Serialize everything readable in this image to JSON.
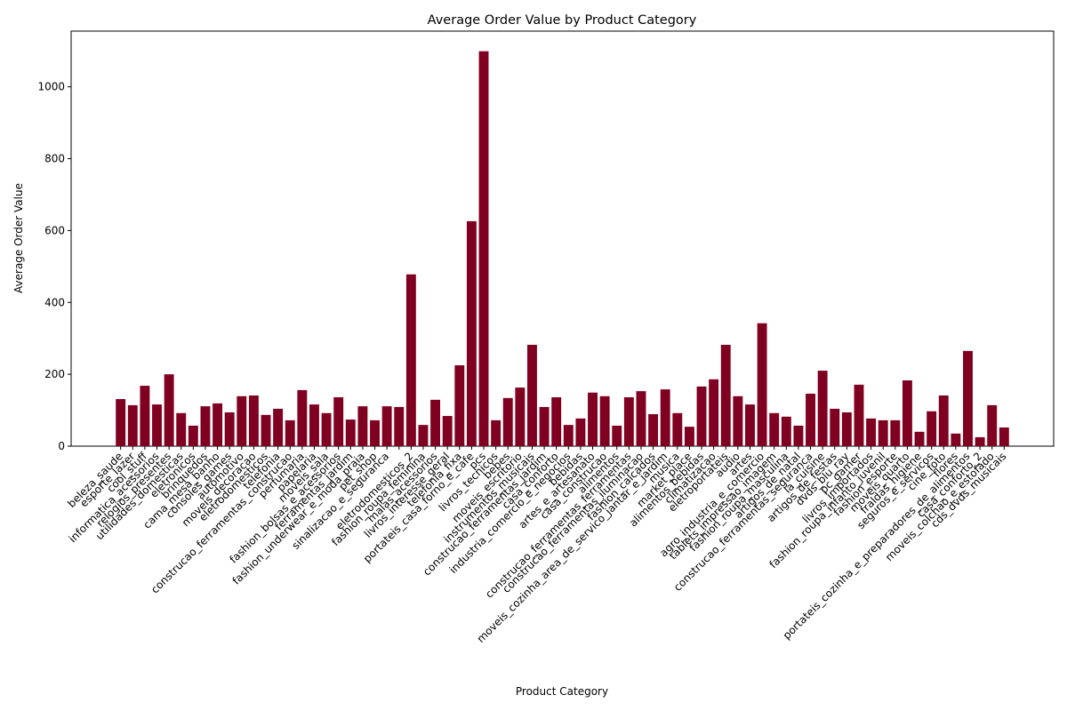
{
  "chart_data": {
    "type": "bar",
    "title": "Average Order Value by Product Category",
    "xlabel": "Product Category",
    "ylabel": "Average Order Value",
    "color": "#7f0020",
    "categories": [
      "beleza_saude",
      "esporte_lazer",
      "cool_stuff",
      "informatica_acessorios",
      "relogios_presentes",
      "utilidades_domesticas",
      "eletronicos",
      "brinquedos",
      "cama_mesa_banho",
      "consoles_games",
      "automotivo",
      "moveis_decoracao",
      "eletrodomesticos",
      "telefonia",
      "construcao_ferramentas_construcao",
      "perfumaria",
      "papelaria",
      "moveis_sala",
      "fashion_bolsas_e_acessorios",
      "ferramentas_jardim",
      "fashion_underwear_e_moda_praia",
      "pet_shop",
      "sinalizacao_e_seguranca",
      null,
      "eletrodomesticos_2",
      "fashion_roupa_feminina",
      "malas_acessorios",
      "livros_interesse_geral",
      "telefonia_fixa",
      "portateis_casa_forno_e_cafe",
      "pcs",
      "livros_tecnicos",
      "bebes",
      "moveis_escritorio",
      "instrumentos_musicais",
      "construcao_ferramentas_jardim",
      "casa_conforto",
      "industria_comercio_e_negocios",
      "bebidas",
      "artes_e_artesanato",
      "casa_construcao",
      "alimentos",
      "construcao_ferramentas_ferramentas",
      "construcao_ferramentas_iluminacao",
      "fashion_calcados",
      "moveis_cozinha_area_de_servico_jantar_e_jardim",
      "musica",
      "market_place",
      "alimentos_bebidas",
      "climatizacao",
      "eletroportateis",
      "audio",
      "artes",
      "agro_industria_e_comercio",
      "tablets_impressao_imagem",
      "fashion_roupa_masculina",
      "artigos_de_natal",
      "construcao_ferramentas_seguranca",
      "la_cuisine",
      "artigos_de_festas",
      "dvds_blu_ray",
      "pc_gamer",
      "livros_importados",
      "fashion_roupa_infanto_juvenil",
      "fashion_esporte",
      "moveis_quarto",
      "fraldas_higiene",
      "seguros_e_servicos",
      "cine_foto",
      "flores",
      "portateis_cozinha_e_preparadores_de_alimentos",
      "casa_conforto_2",
      "moveis_colchao_e_estofado",
      "cds_dvds_musicais"
    ],
    "values": [
      131,
      114,
      168,
      116,
      200,
      92,
      57,
      111,
      119,
      94,
      139,
      141,
      87,
      104,
      72,
      156,
      116,
      92,
      136,
      74,
      111,
      72,
      111,
      109,
      478,
      59,
      129,
      84,
      225,
      626,
      1099,
      72,
      134,
      163,
      282,
      109,
      136,
      59,
      77,
      149,
      139,
      57,
      136,
      153,
      89,
      158,
      92,
      54,
      166,
      186,
      282,
      139,
      116,
      342,
      92,
      82,
      57,
      146,
      210,
      104,
      94,
      171,
      77,
      72,
      72,
      183,
      40,
      97,
      141,
      35,
      265,
      25,
      114,
      52
    ],
    "ylim": [
      0,
      1155
    ],
    "yticks": [
      0,
      200,
      400,
      600,
      800,
      1000
    ]
  }
}
